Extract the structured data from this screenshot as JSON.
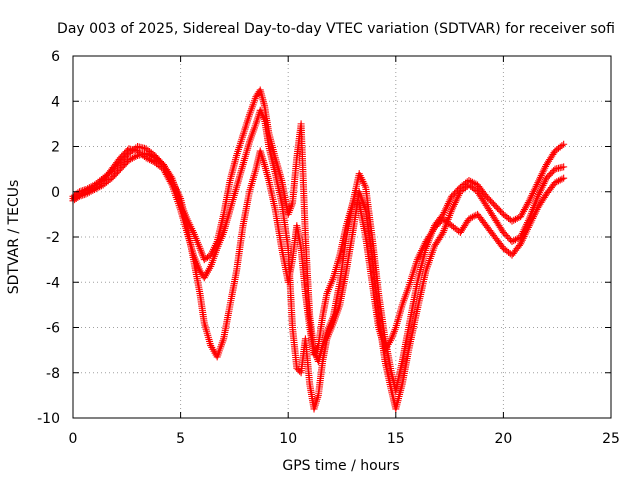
{
  "chart_data": {
    "type": "scatter",
    "title": "Day 003 of 2025, Sidereal Day-to-day VTEC variation (SDTVAR) for receiver sofi",
    "xlabel": "GPS time / hours",
    "ylabel": "SDTVAR / TECUs",
    "xlim": [
      0,
      25
    ],
    "ylim": [
      -10,
      6
    ],
    "xticks": [
      0,
      5,
      10,
      15,
      20,
      25
    ],
    "yticks": [
      -10,
      -8,
      -6,
      -4,
      -2,
      0,
      2,
      4,
      6
    ],
    "grid": true,
    "marker": "+",
    "color": "#ff0000",
    "series": [
      {
        "x": [
          0.0,
          0.3,
          0.6,
          1.0,
          1.4,
          1.8,
          2.2,
          2.6,
          3.0,
          3.4,
          3.8,
          4.2,
          4.6,
          5.0,
          5.3,
          5.6,
          5.9,
          6.1,
          6.4,
          6.7,
          7.0,
          7.3,
          7.6,
          7.9,
          8.2,
          8.5,
          8.7,
          8.9,
          9.1,
          9.4,
          9.7,
          10.0,
          10.2,
          10.4,
          10.6,
          10.8,
          11.0,
          11.2,
          11.4,
          11.6,
          11.8,
          12.1,
          12.4,
          12.7,
          13.0,
          13.3,
          13.6,
          13.9,
          14.2,
          14.5,
          14.8,
          15.0,
          15.3,
          15.6,
          16.0,
          16.4,
          16.8,
          17.2,
          17.6,
          18.0,
          18.4,
          18.8,
          19.2,
          19.6,
          20.0,
          20.4,
          20.8,
          21.2,
          21.6,
          22.0,
          22.4,
          22.8
        ],
        "y": [
          -0.2,
          0.0,
          0.1,
          0.3,
          0.6,
          0.9,
          1.3,
          1.7,
          2.0,
          1.9,
          1.6,
          1.2,
          0.6,
          -0.5,
          -1.2,
          -1.8,
          -2.5,
          -3.0,
          -2.8,
          -2.2,
          -1.0,
          0.5,
          1.6,
          2.5,
          3.4,
          4.2,
          4.5,
          3.8,
          2.6,
          1.5,
          0.5,
          -1.0,
          -0.5,
          1.5,
          3.0,
          -2.0,
          -5.5,
          -7.0,
          -7.5,
          -6.8,
          -6.2,
          -5.5,
          -4.0,
          -2.0,
          -0.5,
          0.8,
          0.2,
          -2.0,
          -4.5,
          -6.5,
          -8.0,
          -8.8,
          -7.5,
          -6.0,
          -4.0,
          -2.5,
          -1.5,
          -1.0,
          -0.2,
          0.2,
          0.5,
          0.3,
          -0.2,
          -0.6,
          -1.0,
          -1.3,
          -1.1,
          -0.4,
          0.4,
          1.2,
          1.8,
          2.1
        ]
      },
      {
        "x": [
          0.0,
          0.3,
          0.6,
          1.0,
          1.4,
          1.8,
          2.2,
          2.6,
          3.0,
          3.4,
          3.8,
          4.2,
          4.6,
          5.0,
          5.3,
          5.6,
          5.9,
          6.1,
          6.4,
          6.7,
          7.0,
          7.3,
          7.6,
          7.9,
          8.2,
          8.5,
          8.7,
          8.9,
          9.1,
          9.4,
          9.7,
          10.0,
          10.2,
          10.4,
          10.6,
          10.8,
          11.0,
          11.2,
          11.4,
          11.6,
          11.8,
          12.1,
          12.4,
          12.7,
          13.0,
          13.3,
          13.6,
          13.9,
          14.2,
          14.5,
          14.8,
          15.0,
          15.3,
          15.6,
          16.0,
          16.4,
          16.8,
          17.2,
          17.6,
          18.0,
          18.4,
          18.8,
          19.2,
          19.6,
          20.0,
          20.4,
          20.8,
          21.2,
          21.6,
          22.0,
          22.4,
          22.8
        ],
        "y": [
          -0.3,
          -0.1,
          0.0,
          0.2,
          0.5,
          1.0,
          1.5,
          1.9,
          1.8,
          1.5,
          1.3,
          1.0,
          0.3,
          -0.8,
          -1.8,
          -2.8,
          -3.5,
          -3.8,
          -3.3,
          -2.5,
          -1.8,
          -0.8,
          0.2,
          1.2,
          2.2,
          3.0,
          3.6,
          3.2,
          2.0,
          0.8,
          -0.5,
          -2.5,
          -6.0,
          -7.8,
          -8.0,
          -6.5,
          -8.5,
          -9.6,
          -9.0,
          -7.5,
          -6.5,
          -5.8,
          -5.0,
          -3.5,
          -1.8,
          0.0,
          -0.8,
          -2.8,
          -5.5,
          -7.5,
          -8.8,
          -9.6,
          -8.5,
          -7.0,
          -5.2,
          -3.5,
          -2.4,
          -1.8,
          -0.8,
          0.0,
          0.3,
          0.0,
          -0.6,
          -1.2,
          -1.8,
          -2.2,
          -2.0,
          -1.2,
          -0.2,
          0.6,
          1.0,
          1.1
        ]
      },
      {
        "x": [
          0.0,
          0.3,
          0.6,
          1.0,
          1.4,
          1.8,
          2.2,
          2.6,
          3.0,
          3.4,
          3.8,
          4.2,
          4.6,
          5.0,
          5.3,
          5.6,
          5.9,
          6.1,
          6.4,
          6.7,
          7.0,
          7.3,
          7.6,
          7.9,
          8.2,
          8.5,
          8.7,
          8.9,
          9.1,
          9.4,
          9.7,
          10.0,
          10.2,
          10.4,
          10.6,
          10.8,
          11.0,
          11.2,
          11.4,
          11.6,
          11.8,
          12.1,
          12.4,
          12.7,
          13.0,
          13.3,
          13.6,
          13.9,
          14.2,
          14.5,
          14.8,
          15.0,
          15.3,
          15.6,
          16.0,
          16.4,
          16.8,
          17.2,
          17.6,
          18.0,
          18.4,
          18.8,
          19.2,
          19.6,
          20.0,
          20.4,
          20.8,
          21.2,
          21.6,
          22.0,
          22.4,
          22.8
        ],
        "y": [
          -0.4,
          -0.2,
          -0.1,
          0.1,
          0.3,
          0.6,
          1.0,
          1.4,
          1.6,
          1.7,
          1.5,
          1.2,
          0.5,
          -0.3,
          -1.5,
          -3.0,
          -4.5,
          -5.8,
          -6.8,
          -7.3,
          -6.5,
          -5.0,
          -3.5,
          -1.5,
          0.0,
          1.0,
          1.8,
          1.2,
          0.5,
          -0.8,
          -2.5,
          -4.0,
          -3.0,
          -1.5,
          -2.5,
          -4.5,
          -6.0,
          -7.2,
          -6.8,
          -5.5,
          -4.5,
          -3.8,
          -2.8,
          -1.5,
          -0.5,
          -0.5,
          -2.0,
          -4.0,
          -6.0,
          -7.0,
          -6.5,
          -6.0,
          -5.0,
          -4.2,
          -3.0,
          -2.2,
          -1.6,
          -1.2,
          -1.5,
          -1.8,
          -1.2,
          -1.0,
          -1.5,
          -2.0,
          -2.5,
          -2.8,
          -2.3,
          -1.5,
          -0.7,
          -0.1,
          0.4,
          0.6
        ]
      }
    ]
  }
}
